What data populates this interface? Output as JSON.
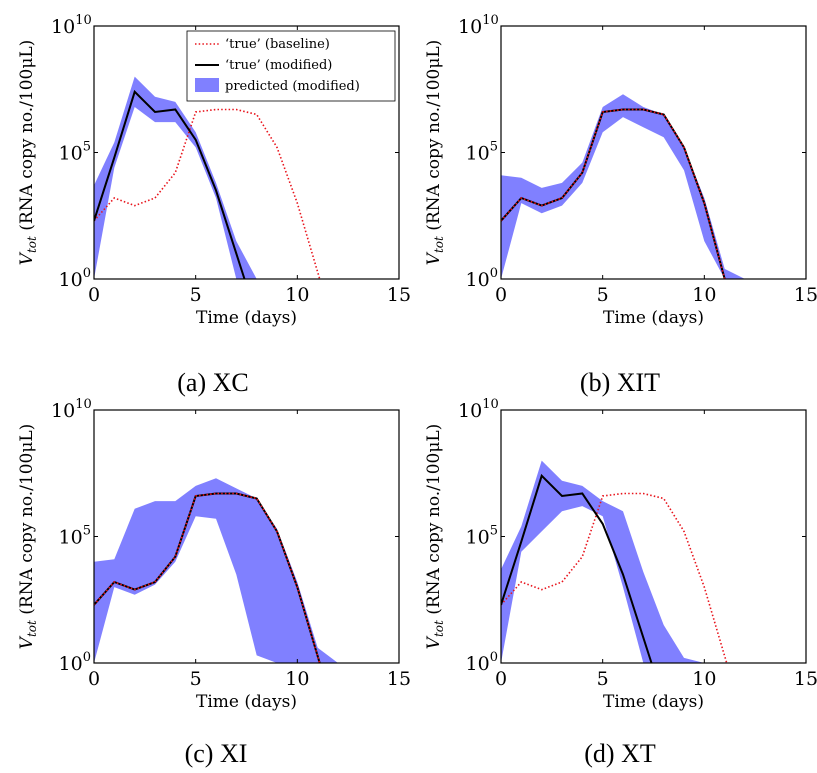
{
  "chart_data": [
    {
      "type": "line",
      "caption": "(a) XC",
      "xlabel": "Time (days)",
      "ylabel_main": "V",
      "ylabel_sub": "tot",
      "ylabel_rest": " (RNA copy no./100μL)",
      "xlim": [
        0,
        15
      ],
      "xticks": [
        "0",
        "5",
        "10",
        "15"
      ],
      "ylim_log10": [
        0,
        10
      ],
      "yticks": [
        {
          "base": "10",
          "exp": "0",
          "v": 0
        },
        {
          "base": "10",
          "exp": "5",
          "v": 5
        },
        {
          "base": "10",
          "exp": "10",
          "v": 10
        }
      ],
      "legend": {
        "show": true,
        "position": "top-right",
        "entries": [
          "‘true’ (baseline)",
          "‘true’ (modified)",
          "predicted (modified)"
        ]
      },
      "series": [
        {
          "name": "‘true’ (baseline)",
          "style": "dotted",
          "color": "#e8141c",
          "x": [
            0,
            1,
            2,
            3,
            4,
            5,
            6,
            7,
            8,
            9,
            10,
            11.1
          ],
          "y_log10": [
            2.3,
            3.2,
            2.9,
            3.2,
            4.2,
            6.6,
            6.7,
            6.7,
            6.5,
            5.2,
            3.0,
            0.0
          ]
        },
        {
          "name": "‘true’ (modified)",
          "style": "solid",
          "color": "#000000",
          "x": [
            0,
            1,
            2,
            3,
            4,
            5,
            6,
            7.4
          ],
          "y_log10": [
            2.3,
            4.8,
            7.4,
            6.6,
            6.7,
            5.5,
            3.5,
            0.0
          ]
        },
        {
          "name": "predicted (modified)",
          "style": "band",
          "color": "#8080ff",
          "x": [
            0,
            1,
            2,
            3,
            4,
            5,
            6,
            7,
            8
          ],
          "upper_log10": [
            3.7,
            5.4,
            8.0,
            7.2,
            7.0,
            5.8,
            3.8,
            1.5,
            0.0
          ],
          "lower_log10": [
            0.0,
            4.4,
            6.8,
            6.2,
            6.2,
            5.2,
            3.2,
            0.0,
            0.0
          ]
        }
      ]
    },
    {
      "type": "line",
      "caption": "(b) XIT",
      "xlabel": "Time (days)",
      "ylabel_main": "V",
      "ylabel_sub": "tot",
      "ylabel_rest": " (RNA copy no./100μL)",
      "xlim": [
        0,
        15
      ],
      "xticks": [
        "0",
        "5",
        "10",
        "15"
      ],
      "ylim_log10": [
        0,
        10
      ],
      "yticks": [
        {
          "base": "10",
          "exp": "0",
          "v": 0
        },
        {
          "base": "10",
          "exp": "5",
          "v": 5
        },
        {
          "base": "10",
          "exp": "10",
          "v": 10
        }
      ],
      "legend": {
        "show": false
      },
      "series": [
        {
          "name": "‘true’ (baseline)",
          "style": "dotted",
          "color": "#e8141c",
          "x": [
            0,
            1,
            2,
            3,
            4,
            5,
            6,
            7,
            8,
            9,
            10,
            11
          ],
          "y_log10": [
            2.3,
            3.2,
            2.9,
            3.2,
            4.2,
            6.6,
            6.7,
            6.7,
            6.5,
            5.2,
            3.0,
            0.0
          ]
        },
        {
          "name": "‘true’ (modified)",
          "style": "solid",
          "color": "#000000",
          "x": [
            0,
            1,
            2,
            3,
            4,
            5,
            6,
            7,
            8,
            9,
            10,
            11
          ],
          "y_log10": [
            2.3,
            3.2,
            2.9,
            3.2,
            4.2,
            6.6,
            6.7,
            6.7,
            6.5,
            5.2,
            3.0,
            0.0
          ]
        },
        {
          "name": "predicted (modified)",
          "style": "band",
          "color": "#8080ff",
          "x": [
            0,
            1,
            2,
            3,
            4,
            5,
            6,
            7,
            8,
            9,
            10,
            11,
            12
          ],
          "upper_log10": [
            4.1,
            4.0,
            3.6,
            3.8,
            4.6,
            6.8,
            7.3,
            6.8,
            6.5,
            5.2,
            3.2,
            0.4,
            0.0
          ],
          "lower_log10": [
            0.0,
            3.0,
            2.6,
            2.9,
            3.8,
            5.8,
            6.4,
            6.0,
            5.6,
            4.3,
            1.5,
            0.0,
            0.0
          ]
        }
      ]
    },
    {
      "type": "line",
      "caption": "(c) XI",
      "xlabel": "Time (days)",
      "ylabel_main": "V",
      "ylabel_sub": "tot",
      "ylabel_rest": " (RNA copy no./100μL)",
      "xlim": [
        0,
        15
      ],
      "xticks": [
        "0",
        "5",
        "10",
        "15"
      ],
      "ylim_log10": [
        0,
        10
      ],
      "yticks": [
        {
          "base": "10",
          "exp": "0",
          "v": 0
        },
        {
          "base": "10",
          "exp": "5",
          "v": 5
        },
        {
          "base": "10",
          "exp": "10",
          "v": 10
        }
      ],
      "legend": {
        "show": false
      },
      "series": [
        {
          "name": "‘true’ (baseline)",
          "style": "dotted",
          "color": "#e8141c",
          "x": [
            0,
            1,
            2,
            3,
            4,
            5,
            6,
            7,
            8,
            9,
            10,
            11.1
          ],
          "y_log10": [
            2.3,
            3.2,
            2.9,
            3.2,
            4.2,
            6.6,
            6.7,
            6.7,
            6.5,
            5.2,
            3.0,
            0.0
          ]
        },
        {
          "name": "‘true’ (modified)",
          "style": "solid",
          "color": "#000000",
          "x": [
            0,
            1,
            2,
            3,
            4,
            5,
            6,
            7,
            8,
            9,
            10,
            11.1
          ],
          "y_log10": [
            2.3,
            3.2,
            2.9,
            3.2,
            4.2,
            6.6,
            6.7,
            6.7,
            6.5,
            5.2,
            3.0,
            0.0
          ]
        },
        {
          "name": "predicted (modified)",
          "style": "band",
          "color": "#8080ff",
          "x": [
            0,
            1,
            2,
            3,
            4,
            5,
            6,
            7,
            8,
            9,
            10,
            11,
            12
          ],
          "upper_log10": [
            4.0,
            4.1,
            6.1,
            6.4,
            6.4,
            7.0,
            7.3,
            6.9,
            6.5,
            5.3,
            3.2,
            0.6,
            0.0
          ],
          "lower_log10": [
            0.0,
            3.0,
            2.7,
            3.1,
            4.0,
            5.8,
            5.7,
            3.5,
            0.3,
            0.0,
            0.0,
            0.0,
            0.0
          ]
        }
      ]
    },
    {
      "type": "line",
      "caption": "(d) XT",
      "xlabel": "Time (days)",
      "ylabel_main": "V",
      "ylabel_sub": "tot",
      "ylabel_rest": " (RNA copy no./100μL)",
      "xlim": [
        0,
        15
      ],
      "xticks": [
        "0",
        "5",
        "10",
        "15"
      ],
      "ylim_log10": [
        0,
        10
      ],
      "yticks": [
        {
          "base": "10",
          "exp": "0",
          "v": 0
        },
        {
          "base": "10",
          "exp": "5",
          "v": 5
        },
        {
          "base": "10",
          "exp": "10",
          "v": 10
        }
      ],
      "legend": {
        "show": false
      },
      "series": [
        {
          "name": "‘true’ (baseline)",
          "style": "dotted",
          "color": "#e8141c",
          "x": [
            0,
            1,
            2,
            3,
            4,
            5,
            6,
            7,
            8,
            9,
            10,
            11.1
          ],
          "y_log10": [
            2.3,
            3.2,
            2.9,
            3.2,
            4.2,
            6.6,
            6.7,
            6.7,
            6.5,
            5.2,
            3.0,
            0.0
          ]
        },
        {
          "name": "‘true’ (modified)",
          "style": "solid",
          "color": "#000000",
          "x": [
            0,
            1,
            2,
            3,
            4,
            5,
            6,
            7.4
          ],
          "y_log10": [
            2.3,
            4.8,
            7.4,
            6.6,
            6.7,
            5.5,
            3.5,
            0.0
          ]
        },
        {
          "name": "predicted (modified)",
          "style": "band",
          "color": "#8080ff",
          "x": [
            0,
            1,
            2,
            3,
            4,
            5,
            6,
            7,
            8,
            9,
            10
          ],
          "upper_log10": [
            3.7,
            5.4,
            8.0,
            7.2,
            7.0,
            6.4,
            6.0,
            3.6,
            1.5,
            0.2,
            0.0
          ],
          "lower_log10": [
            0.0,
            4.4,
            5.2,
            6.0,
            6.2,
            5.8,
            3.0,
            0.0,
            0.0,
            0.0,
            0.0
          ]
        }
      ]
    }
  ]
}
